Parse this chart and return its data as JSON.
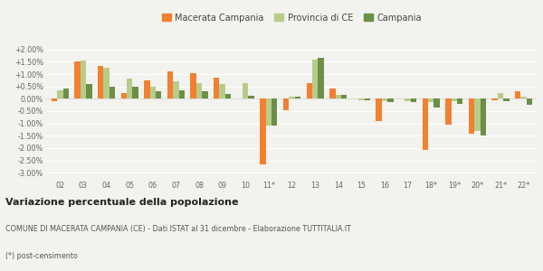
{
  "categories": [
    "02",
    "03",
    "04",
    "05",
    "06",
    "07",
    "08",
    "09",
    "10",
    "11*",
    "12",
    "13",
    "14",
    "15",
    "16",
    "17",
    "18*",
    "19*",
    "20*",
    "21*",
    "22*"
  ],
  "macerata": [
    -0.1,
    1.5,
    1.35,
    0.25,
    0.75,
    1.1,
    1.05,
    0.85,
    0.02,
    -2.65,
    -0.45,
    0.62,
    0.42,
    0.0,
    -0.9,
    0.0,
    -2.08,
    -1.05,
    -1.4,
    -0.05,
    0.3
  ],
  "provincia": [
    0.35,
    1.55,
    1.25,
    0.82,
    0.5,
    0.7,
    0.65,
    0.6,
    0.65,
    -1.1,
    0.1,
    1.6,
    0.17,
    -0.05,
    -0.1,
    -0.1,
    -0.12,
    -0.1,
    -1.3,
    0.25,
    0.1
  ],
  "campania": [
    0.42,
    0.6,
    0.5,
    0.48,
    0.3,
    0.35,
    0.3,
    0.2,
    0.12,
    -1.08,
    0.07,
    1.68,
    0.15,
    -0.05,
    -0.15,
    -0.12,
    -0.35,
    -0.2,
    -1.5,
    -0.1,
    -0.25
  ],
  "color_macerata": "#f28030",
  "color_provincia": "#b8cc8a",
  "color_campania": "#6b8f47",
  "background_color": "#f2f2ee",
  "grid_color": "#ffffff",
  "title_main": "Variazione percentuale della popolazione",
  "subtitle1": "COMUNE DI MACERATA CAMPANIA (CE) - Dati ISTAT al 31 dicembre - Elaborazione TUTTITALIA.IT",
  "subtitle2": "(*) post-censimento",
  "legend_labels": [
    "Macerata Campania",
    "Provincia di CE",
    "Campania"
  ],
  "ylim": [
    -3.25,
    2.25
  ],
  "yticks": [
    -3.0,
    -2.5,
    -2.0,
    -1.5,
    -1.0,
    -0.5,
    0.0,
    0.5,
    1.0,
    1.5,
    2.0
  ],
  "bar_width": 0.25
}
